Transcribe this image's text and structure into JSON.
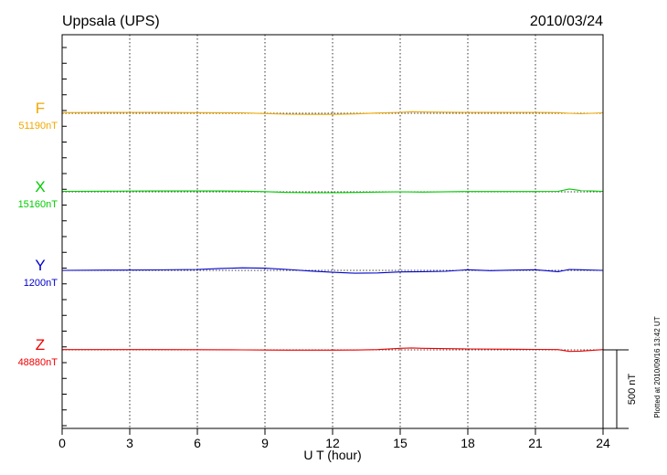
{
  "chart_data": {
    "type": "line",
    "title": "Uppsala (UPS)",
    "date": "2010/03/24",
    "xlabel": "U T (hour)",
    "xlim": [
      0,
      24
    ],
    "x_ticks": [
      "0",
      "3",
      "6",
      "9",
      "12",
      "15",
      "18",
      "21",
      "24"
    ],
    "grid": true,
    "scale_bar_label": "500 nT",
    "scale_bar_nT": 500,
    "plotted_note": "Plotted at 2010/09/16 13:42 UT",
    "series": [
      {
        "name": "F",
        "baseline_label": "51190nT",
        "baseline_nT": 51190,
        "color": "#f0a800",
        "x": [
          0,
          2,
          4,
          6,
          8,
          9,
          10,
          11,
          12,
          13,
          14,
          15,
          15.5,
          16,
          18,
          20,
          21,
          22,
          22.5,
          23,
          24
        ],
        "dy_nT": [
          4,
          5,
          5,
          4,
          3,
          -2,
          -6,
          -7,
          -7,
          -4,
          2,
          6,
          10,
          8,
          5,
          5,
          5,
          4,
          0,
          -3,
          3
        ]
      },
      {
        "name": "X",
        "baseline_label": "15160nT",
        "baseline_nT": 15160,
        "color": "#00cc00",
        "x": [
          0,
          2,
          4,
          6,
          7,
          8,
          9,
          10,
          11,
          12,
          13,
          14,
          15,
          16,
          18,
          20,
          21,
          22,
          22.5,
          23,
          24
        ],
        "dy_nT": [
          3,
          4,
          5,
          5,
          5,
          4,
          1,
          -4,
          -6,
          -6,
          -4,
          -2,
          0,
          -2,
          2,
          2,
          2,
          3,
          18,
          8,
          3
        ]
      },
      {
        "name": "Y",
        "baseline_label": "1200nT",
        "baseline_nT": 1200,
        "color": "#0000cc",
        "x": [
          0,
          2,
          4,
          6,
          7,
          8,
          9,
          10,
          11,
          12,
          13,
          14,
          15,
          16,
          17,
          18,
          19,
          20,
          21,
          22,
          22.5,
          23,
          24
        ],
        "dy_nT": [
          0,
          2,
          3,
          6,
          12,
          16,
          14,
          6,
          -4,
          -12,
          -18,
          -16,
          -10,
          -8,
          -6,
          4,
          -2,
          2,
          4,
          -8,
          6,
          4,
          0
        ]
      },
      {
        "name": "Z",
        "baseline_label": "48880nT",
        "baseline_nT": 48880,
        "color": "#ee0000",
        "x": [
          0,
          2,
          4,
          6,
          8,
          9,
          10,
          11,
          12,
          13,
          14,
          15,
          15.5,
          16,
          18,
          20,
          21,
          22,
          22.5,
          23,
          24
        ],
        "dy_nT": [
          2,
          2,
          2,
          1,
          0,
          -1,
          -2,
          -2,
          -2,
          -1,
          2,
          10,
          12,
          10,
          6,
          4,
          3,
          2,
          -10,
          -8,
          2
        ]
      }
    ]
  }
}
